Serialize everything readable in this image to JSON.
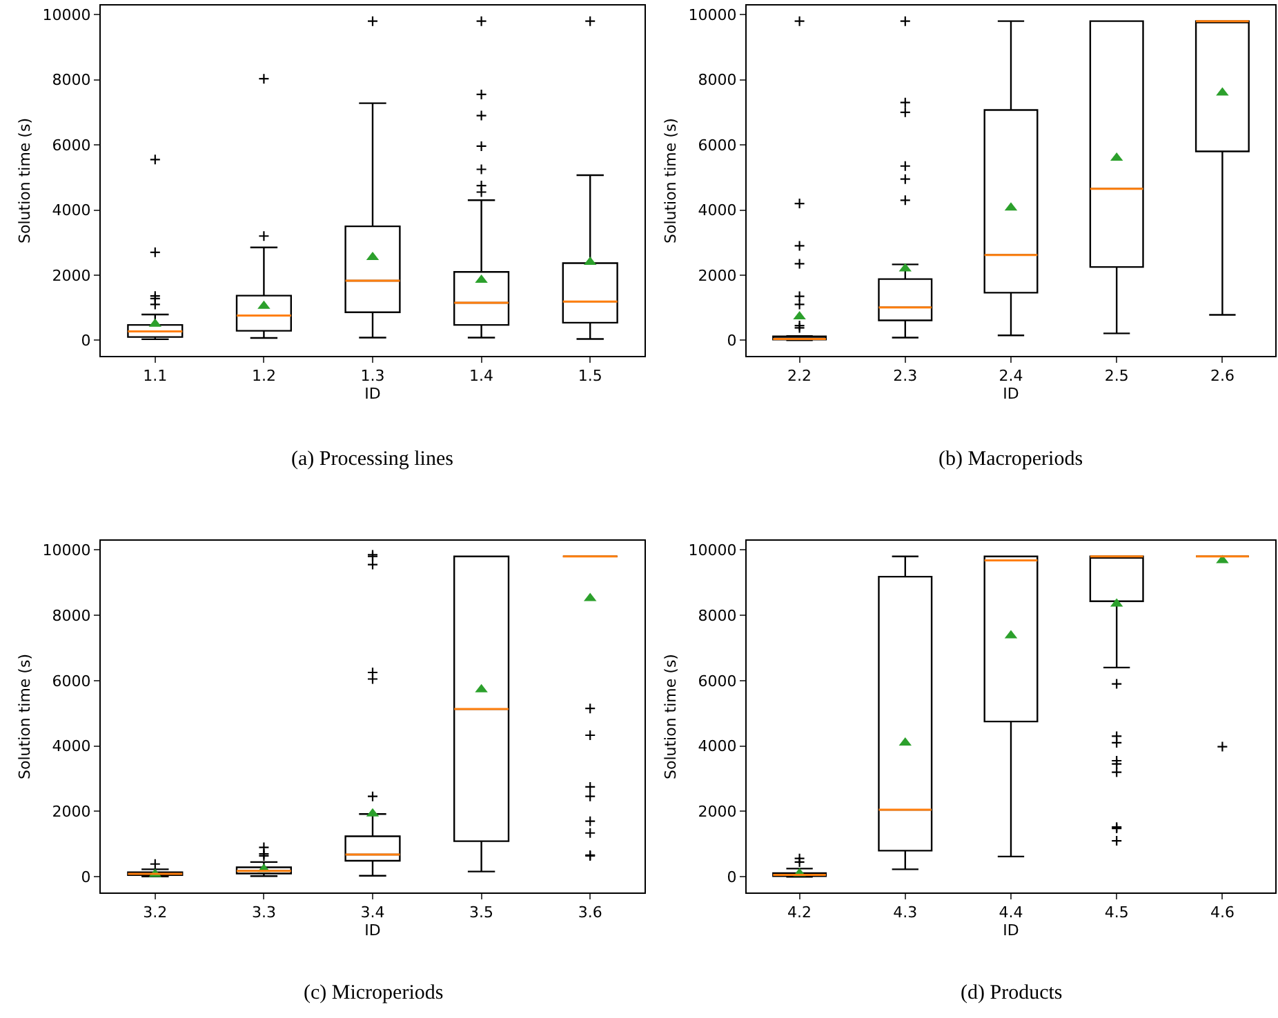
{
  "chart_data": [
    {
      "type": "box",
      "xlabel": "ID",
      "ylabel": "Solution time (s)",
      "categories": [
        "1.1",
        "1.2",
        "1.3",
        "1.4",
        "1.5"
      ],
      "ylim": [
        -480,
        10280
      ],
      "yticks": [
        0,
        2000,
        4000,
        6000,
        8000,
        10000
      ],
      "annotations": [
        "(a) Processing lines"
      ],
      "boxes": [
        {
          "low": 30,
          "q1": 100,
          "median": 270,
          "q3": 470,
          "high": 790,
          "mean": 500,
          "outliers": [
            1100,
            1280,
            1360,
            2700,
            5550
          ]
        },
        {
          "low": 70,
          "q1": 290,
          "median": 760,
          "q3": 1370,
          "high": 2850,
          "mean": 1050,
          "outliers": [
            3200,
            8030
          ]
        },
        {
          "low": 80,
          "q1": 860,
          "median": 1830,
          "q3": 3500,
          "high": 7280,
          "mean": 2550,
          "outliers": [
            9800
          ]
        },
        {
          "low": 80,
          "q1": 470,
          "median": 1150,
          "q3": 2100,
          "high": 4300,
          "mean": 1850,
          "outliers": [
            4550,
            4750,
            5250,
            5960,
            6900,
            7550,
            9800
          ]
        },
        {
          "low": 40,
          "q1": 540,
          "median": 1190,
          "q3": 2370,
          "high": 5070,
          "mean": 2400,
          "outliers": [
            9800
          ]
        }
      ]
    },
    {
      "type": "box",
      "xlabel": "ID",
      "ylabel": "Solution time (s)",
      "categories": [
        "2.2",
        "2.3",
        "2.4",
        "2.5",
        "2.6"
      ],
      "ylim": [
        -480,
        10280
      ],
      "yticks": [
        0,
        2000,
        4000,
        6000,
        8000,
        10000
      ],
      "annotations": [
        "(b) Macroperiods"
      ],
      "boxes": [
        {
          "low": 0,
          "q1": 20,
          "median": 40,
          "q3": 120,
          "high": 130,
          "mean": 730,
          "outliers": [
            380,
            450,
            1100,
            1350,
            2350,
            2900,
            4200,
            9800
          ]
        },
        {
          "low": 80,
          "q1": 610,
          "median": 1010,
          "q3": 1880,
          "high": 2330,
          "mean": 2200,
          "outliers": [
            4300,
            4950,
            5350,
            7000,
            7300,
            9800
          ]
        },
        {
          "low": 150,
          "q1": 1460,
          "median": 2620,
          "q3": 7070,
          "high": 9800,
          "mean": 4070
        },
        {
          "low": 210,
          "q1": 2250,
          "median": 4650,
          "q3": 9800,
          "high": 9800,
          "mean": 5600
        },
        {
          "low": 780,
          "q1": 5800,
          "median": 9800,
          "q3": 9800,
          "high": 9800,
          "mean": 7600
        }
      ]
    },
    {
      "type": "box",
      "xlabel": "ID",
      "ylabel": "Solution time (s)",
      "categories": [
        "3.2",
        "3.3",
        "3.4",
        "3.5",
        "3.6"
      ],
      "ylim": [
        -480,
        10280
      ],
      "yticks": [
        0,
        2000,
        4000,
        6000,
        8000,
        10000
      ],
      "annotations": [
        "(c) Microperiods"
      ],
      "boxes": [
        {
          "low": 10,
          "q1": 50,
          "median": 90,
          "q3": 140,
          "high": 230,
          "mean": 80,
          "outliers": [
            390
          ]
        },
        {
          "low": 20,
          "q1": 100,
          "median": 180,
          "q3": 290,
          "high": 450,
          "mean": 230,
          "outliers": [
            640,
            700,
            900
          ]
        },
        {
          "low": 30,
          "q1": 490,
          "median": 680,
          "q3": 1240,
          "high": 1920,
          "mean": 1930,
          "outliers": [
            2460,
            6050,
            6250,
            9550,
            9800,
            9850
          ]
        },
        {
          "low": 160,
          "q1": 1090,
          "median": 5130,
          "q3": 9800,
          "high": 9800,
          "mean": 5730
        },
        {
          "low": 9800,
          "q1": 9800,
          "median": 9800,
          "q3": 9800,
          "high": 9800,
          "mean": 8520,
          "outliers": [
            640,
            660,
            1340,
            1700,
            2460,
            2750,
            4330,
            5150
          ]
        }
      ]
    },
    {
      "type": "box",
      "xlabel": "ID",
      "ylabel": "Solution time (s)",
      "categories": [
        "4.2",
        "4.3",
        "4.4",
        "4.5",
        "4.6"
      ],
      "ylim": [
        -480,
        10280
      ],
      "yticks": [
        0,
        2000,
        4000,
        6000,
        8000,
        10000
      ],
      "annotations": [
        "(d) Products"
      ],
      "boxes": [
        {
          "low": 0,
          "q1": 20,
          "median": 60,
          "q3": 110,
          "high": 250,
          "mean": 100,
          "outliers": [
            450,
            560
          ]
        },
        {
          "low": 230,
          "q1": 800,
          "median": 2050,
          "q3": 9180,
          "high": 9800,
          "mean": 4100
        },
        {
          "low": 620,
          "q1": 4750,
          "median": 9680,
          "q3": 9800,
          "high": 9800,
          "mean": 7380
        },
        {
          "low": 6400,
          "q1": 8430,
          "median": 9800,
          "q3": 9800,
          "high": 9800,
          "mean": 8350,
          "outliers": [
            1100,
            1480,
            1520,
            3200,
            3450,
            3550,
            4100,
            4300,
            5900
          ]
        },
        {
          "low": 9800,
          "q1": 9800,
          "median": 9800,
          "q3": 9800,
          "high": 9800,
          "mean": 9680,
          "outliers": [
            3980
          ]
        }
      ]
    }
  ]
}
